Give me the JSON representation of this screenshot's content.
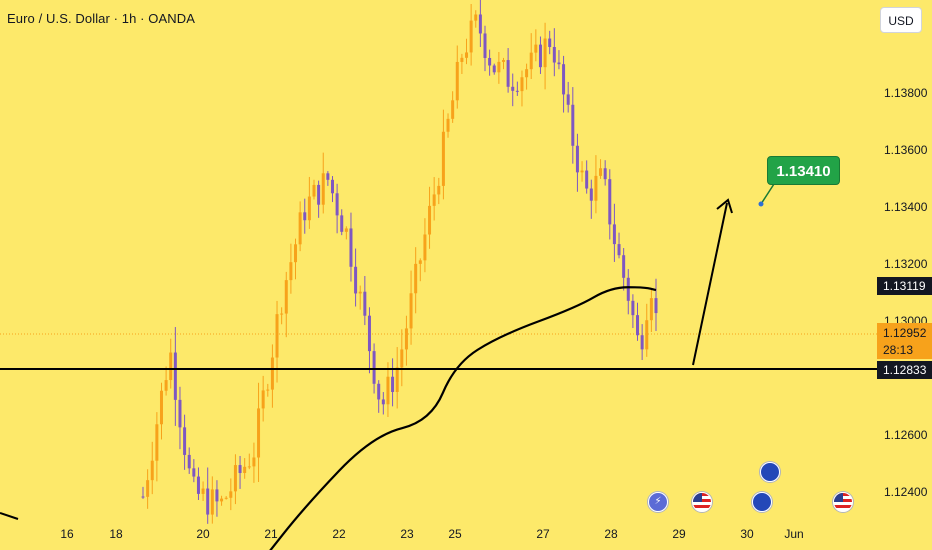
{
  "header": {
    "title": "Euro / U.S. Dollar · 1h · OANDA",
    "currency": "USD"
  },
  "axis": {
    "price_ticks": [
      "1.13800",
      "1.13600",
      "1.13400",
      "1.13200",
      "1.13000",
      "1.12600",
      "1.12400"
    ],
    "date_ticks": [
      "16",
      "18",
      "20",
      "21",
      "22",
      "23",
      "25",
      "27",
      "28",
      "29",
      "30",
      "Jun"
    ]
  },
  "labels": {
    "moving_average": "1.13119",
    "horizontal_level": "1.12833",
    "current_price": "1.12952",
    "countdown": "28:13",
    "target": "1.13410"
  },
  "colors": {
    "background": "#fde96a",
    "candle_up": "#f7a21b",
    "candle_down": "#7e57c2",
    "lines": "#000000",
    "target_box": "#22a347",
    "current_price_label": "#f7a21b"
  },
  "events": [
    {
      "icon": "flash-icon"
    },
    {
      "icon": "us-flag-icon"
    },
    {
      "icon": "eu-flag-icon"
    },
    {
      "icon": "eu-flag-icon"
    },
    {
      "icon": "us-flag-icon"
    }
  ],
  "chart_data": {
    "type": "candlestick",
    "symbol": "EURUSD",
    "interval": "1h",
    "ylim": [
      1.1232,
      1.1402
    ],
    "support_level": 1.12833,
    "moving_average_last": 1.13119,
    "current_price": 1.12952,
    "target": 1.1341,
    "swing_points": [
      {
        "x": "16",
        "y": 1.1225
      },
      {
        "x": "18",
        "y": 1.1228
      },
      {
        "x": "19",
        "y": 1.129
      },
      {
        "x": "19",
        "y": 1.124
      },
      {
        "x": "20",
        "y": 1.1235
      },
      {
        "x": "20",
        "y": 1.1255
      },
      {
        "x": "21",
        "y": 1.131
      },
      {
        "x": "21",
        "y": 1.134
      },
      {
        "x": "21",
        "y": 1.135
      },
      {
        "x": "22",
        "y": 1.133
      },
      {
        "x": "22",
        "y": 1.13
      },
      {
        "x": "22",
        "y": 1.127
      },
      {
        "x": "22",
        "y": 1.1285
      },
      {
        "x": "23",
        "y": 1.132
      },
      {
        "x": "23",
        "y": 1.136
      },
      {
        "x": "25",
        "y": 1.1395
      },
      {
        "x": "25",
        "y": 1.1405
      },
      {
        "x": "25",
        "y": 1.139
      },
      {
        "x": "26",
        "y": 1.1385
      },
      {
        "x": "26",
        "y": 1.139
      },
      {
        "x": "27",
        "y": 1.14
      },
      {
        "x": "27",
        "y": 1.137
      },
      {
        "x": "27",
        "y": 1.1345
      },
      {
        "x": "27",
        "y": 1.135
      },
      {
        "x": "28",
        "y": 1.1325
      },
      {
        "x": "28",
        "y": 1.131
      },
      {
        "x": "28",
        "y": 1.129
      },
      {
        "x": "28",
        "y": 1.1315
      },
      {
        "x": "28",
        "y": 1.1285
      },
      {
        "x": "28",
        "y": 1.1295
      }
    ],
    "moving_average_points": [
      {
        "x": "20",
        "y": 1.1215
      },
      {
        "x": "21",
        "y": 1.1235
      },
      {
        "x": "22",
        "y": 1.126
      },
      {
        "x": "23",
        "y": 1.1265
      },
      {
        "x": "25",
        "y": 1.1285
      },
      {
        "x": "25",
        "y": 1.1295
      },
      {
        "x": "27",
        "y": 1.1305
      },
      {
        "x": "28",
        "y": 1.1312
      },
      {
        "x": "28",
        "y": 1.1312
      },
      {
        "x": "28",
        "y": 1.1311
      }
    ],
    "projection": {
      "from": 1.1283,
      "to": 1.1341
    }
  }
}
